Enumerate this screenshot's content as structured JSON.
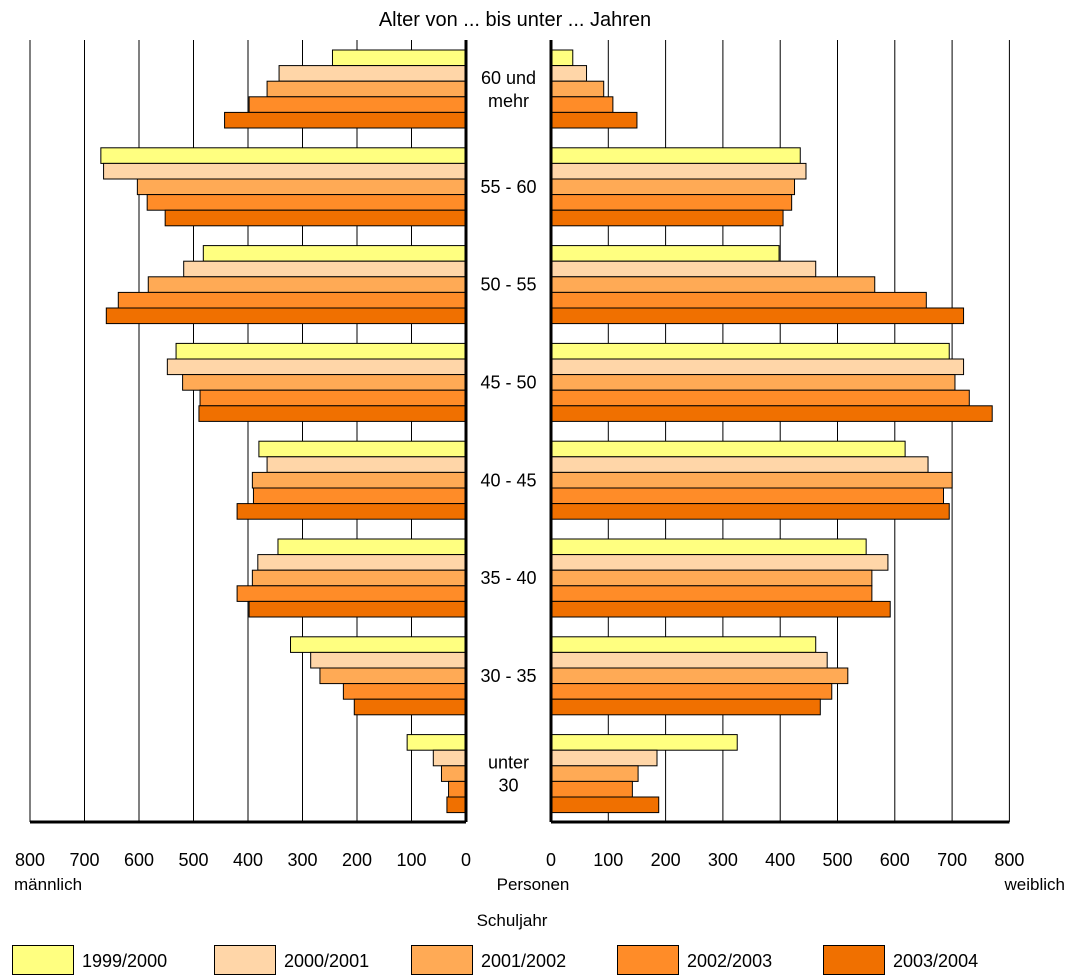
{
  "chart_data": {
    "type": "bar",
    "orientation": "horizontal",
    "layout": "population-pyramid",
    "title": "Alter von ... bis unter ... Jahren",
    "categories": [
      "60 und mehr",
      "55 - 60",
      "50 - 55",
      "45 - 50",
      "40 - 45",
      "35 - 40",
      "30 - 35",
      "unter 30"
    ],
    "category_lines": [
      [
        "60 und",
        "mehr"
      ],
      [
        "55 - 60"
      ],
      [
        "50 - 55"
      ],
      [
        "45 - 50"
      ],
      [
        "40 - 45"
      ],
      [
        "35 - 40"
      ],
      [
        "30 - 35"
      ],
      [
        "unter",
        "30"
      ]
    ],
    "left_label": "männlich",
    "right_label": "weiblich",
    "xlabel": "Personen",
    "xlim": [
      0,
      800
    ],
    "x_ticks": [
      0,
      100,
      200,
      300,
      400,
      500,
      600,
      700,
      800
    ],
    "legend_title": "Schuljahr",
    "legend_position": "bottom",
    "grid": true,
    "series": [
      {
        "name": "1999/2000",
        "color": "#ffff80",
        "male": [
          245,
          670,
          482,
          532,
          380,
          345,
          322,
          108
        ],
        "female": [
          38,
          435,
          398,
          695,
          618,
          550,
          462,
          325
        ]
      },
      {
        "name": "2000/2001",
        "color": "#ffd6a8",
        "male": [
          343,
          665,
          518,
          548,
          365,
          382,
          285,
          60
        ],
        "female": [
          62,
          445,
          462,
          720,
          658,
          588,
          482,
          185
        ]
      },
      {
        "name": "2001/2002",
        "color": "#ffaa55",
        "male": [
          365,
          603,
          583,
          520,
          392,
          392,
          268,
          45
        ],
        "female": [
          92,
          425,
          565,
          705,
          700,
          560,
          518,
          152
        ]
      },
      {
        "name": "2002/2003",
        "color": "#ff8c28",
        "male": [
          398,
          585,
          638,
          488,
          390,
          420,
          225,
          32
        ],
        "female": [
          108,
          420,
          655,
          730,
          685,
          560,
          490,
          142
        ]
      },
      {
        "name": "2003/2004",
        "color": "#f07000",
        "male": [
          443,
          552,
          660,
          490,
          420,
          398,
          205,
          35
        ],
        "female": [
          150,
          405,
          720,
          770,
          695,
          592,
          470,
          188
        ]
      }
    ]
  }
}
